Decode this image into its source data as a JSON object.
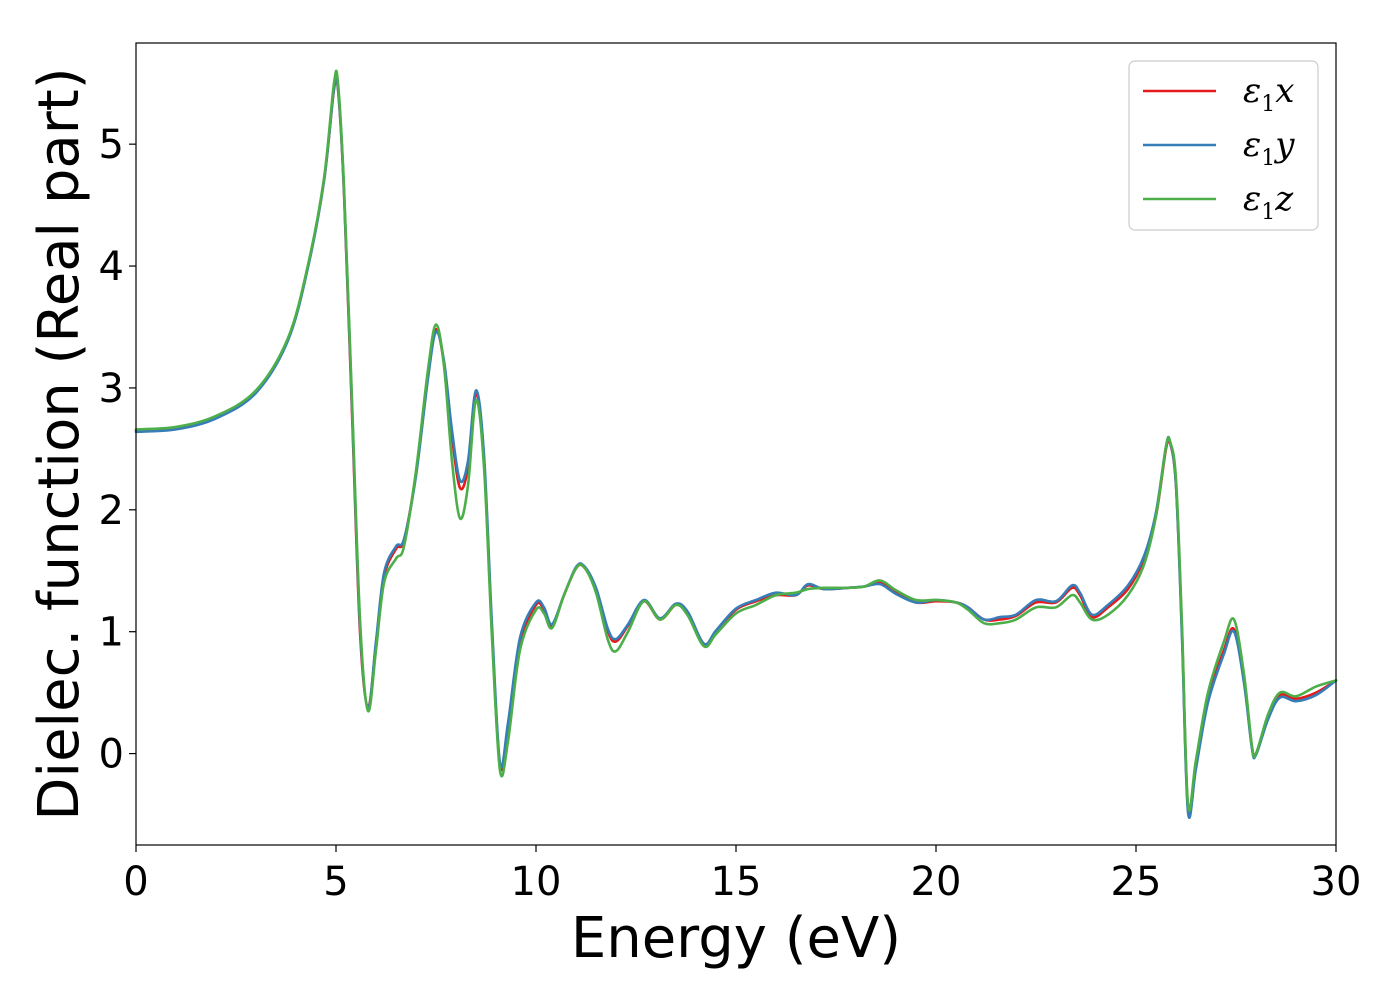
{
  "chart_data": {
    "type": "line",
    "xlabel": "Energy (eV)",
    "ylabel": "Dielec. function (Real part)",
    "xlim": [
      0,
      30
    ],
    "ylim": [
      -0.75,
      5.83
    ],
    "xticks": [
      0,
      5,
      10,
      15,
      20,
      25,
      30
    ],
    "yticks": [
      0,
      1,
      2,
      3,
      4,
      5
    ],
    "grid": false,
    "legend_position": "top-right",
    "series": [
      {
        "name": "ε1x",
        "legend": {
          "base": "ε",
          "sub": "1",
          "suffix": "x"
        },
        "color": "#e41a1c",
        "points": [
          [
            0,
            2.65
          ],
          [
            1,
            2.67
          ],
          [
            2,
            2.76
          ],
          [
            3,
            2.97
          ],
          [
            3.8,
            3.4
          ],
          [
            4.3,
            4.0
          ],
          [
            4.7,
            4.7
          ],
          [
            4.95,
            5.45
          ],
          [
            5.05,
            5.45
          ],
          [
            5.2,
            4.6
          ],
          [
            5.4,
            2.8
          ],
          [
            5.6,
            1.0
          ],
          [
            5.8,
            0.38
          ],
          [
            6.0,
            0.9
          ],
          [
            6.2,
            1.45
          ],
          [
            6.5,
            1.68
          ],
          [
            6.7,
            1.75
          ],
          [
            7.0,
            2.3
          ],
          [
            7.3,
            3.1
          ],
          [
            7.5,
            3.48
          ],
          [
            7.7,
            3.2
          ],
          [
            7.9,
            2.6
          ],
          [
            8.1,
            2.18
          ],
          [
            8.3,
            2.35
          ],
          [
            8.5,
            2.95
          ],
          [
            8.7,
            2.4
          ],
          [
            8.9,
            1.0
          ],
          [
            9.1,
            -0.1
          ],
          [
            9.3,
            0.2
          ],
          [
            9.6,
            0.9
          ],
          [
            10.0,
            1.22
          ],
          [
            10.2,
            1.18
          ],
          [
            10.4,
            1.05
          ],
          [
            10.7,
            1.3
          ],
          [
            11.0,
            1.52
          ],
          [
            11.2,
            1.53
          ],
          [
            11.5,
            1.35
          ],
          [
            11.8,
            1.0
          ],
          [
            12.0,
            0.92
          ],
          [
            12.3,
            1.05
          ],
          [
            12.7,
            1.25
          ],
          [
            13.1,
            1.1
          ],
          [
            13.5,
            1.22
          ],
          [
            13.8,
            1.15
          ],
          [
            14.2,
            0.9
          ],
          [
            14.5,
            1.0
          ],
          [
            15.0,
            1.18
          ],
          [
            15.5,
            1.25
          ],
          [
            16.0,
            1.3
          ],
          [
            16.5,
            1.3
          ],
          [
            16.8,
            1.38
          ],
          [
            17.2,
            1.35
          ],
          [
            17.8,
            1.36
          ],
          [
            18.2,
            1.37
          ],
          [
            18.6,
            1.4
          ],
          [
            19.0,
            1.32
          ],
          [
            19.5,
            1.24
          ],
          [
            20.0,
            1.25
          ],
          [
            20.5,
            1.24
          ],
          [
            20.8,
            1.2
          ],
          [
            21.2,
            1.1
          ],
          [
            21.6,
            1.1
          ],
          [
            22.0,
            1.13
          ],
          [
            22.5,
            1.24
          ],
          [
            23.0,
            1.24
          ],
          [
            23.4,
            1.36
          ],
          [
            23.6,
            1.3
          ],
          [
            23.9,
            1.12
          ],
          [
            24.3,
            1.2
          ],
          [
            24.8,
            1.35
          ],
          [
            25.2,
            1.6
          ],
          [
            25.5,
            1.95
          ],
          [
            25.75,
            2.5
          ],
          [
            25.85,
            2.55
          ],
          [
            26.0,
            2.2
          ],
          [
            26.15,
            1.0
          ],
          [
            26.3,
            -0.45
          ],
          [
            26.5,
            -0.1
          ],
          [
            26.8,
            0.45
          ],
          [
            27.2,
            0.85
          ],
          [
            27.45,
            1.02
          ],
          [
            27.7,
            0.6
          ],
          [
            27.9,
            0.05
          ],
          [
            28.0,
            0.0
          ],
          [
            28.3,
            0.3
          ],
          [
            28.6,
            0.48
          ],
          [
            29.0,
            0.45
          ],
          [
            29.5,
            0.5
          ],
          [
            30.0,
            0.6
          ]
        ]
      },
      {
        "name": "ε1y",
        "legend": {
          "base": "ε",
          "sub": "1",
          "suffix": "y"
        },
        "color": "#377eb8",
        "points": [
          [
            0,
            2.64
          ],
          [
            1,
            2.66
          ],
          [
            2,
            2.75
          ],
          [
            3,
            2.96
          ],
          [
            3.8,
            3.39
          ],
          [
            4.3,
            3.99
          ],
          [
            4.7,
            4.7
          ],
          [
            4.95,
            5.46
          ],
          [
            5.05,
            5.46
          ],
          [
            5.2,
            4.62
          ],
          [
            5.4,
            2.85
          ],
          [
            5.6,
            1.05
          ],
          [
            5.8,
            0.37
          ],
          [
            6.0,
            0.92
          ],
          [
            6.2,
            1.48
          ],
          [
            6.5,
            1.7
          ],
          [
            6.7,
            1.76
          ],
          [
            7.0,
            2.28
          ],
          [
            7.3,
            3.08
          ],
          [
            7.5,
            3.46
          ],
          [
            7.7,
            3.22
          ],
          [
            7.9,
            2.65
          ],
          [
            8.1,
            2.24
          ],
          [
            8.3,
            2.4
          ],
          [
            8.5,
            2.98
          ],
          [
            8.7,
            2.45
          ],
          [
            8.9,
            1.05
          ],
          [
            9.1,
            -0.08
          ],
          [
            9.3,
            0.25
          ],
          [
            9.6,
            0.95
          ],
          [
            10.0,
            1.24
          ],
          [
            10.2,
            1.2
          ],
          [
            10.4,
            1.06
          ],
          [
            10.7,
            1.3
          ],
          [
            11.0,
            1.53
          ],
          [
            11.2,
            1.54
          ],
          [
            11.5,
            1.36
          ],
          [
            11.8,
            1.02
          ],
          [
            12.0,
            0.94
          ],
          [
            12.3,
            1.06
          ],
          [
            12.7,
            1.26
          ],
          [
            13.1,
            1.11
          ],
          [
            13.5,
            1.23
          ],
          [
            13.8,
            1.16
          ],
          [
            14.2,
            0.9
          ],
          [
            14.5,
            1.01
          ],
          [
            15.0,
            1.19
          ],
          [
            15.5,
            1.26
          ],
          [
            16.0,
            1.32
          ],
          [
            16.5,
            1.3
          ],
          [
            16.8,
            1.39
          ],
          [
            17.2,
            1.35
          ],
          [
            17.8,
            1.36
          ],
          [
            18.2,
            1.37
          ],
          [
            18.6,
            1.39
          ],
          [
            19.0,
            1.31
          ],
          [
            19.5,
            1.24
          ],
          [
            20.0,
            1.26
          ],
          [
            20.5,
            1.24
          ],
          [
            20.8,
            1.2
          ],
          [
            21.2,
            1.1
          ],
          [
            21.6,
            1.12
          ],
          [
            22.0,
            1.14
          ],
          [
            22.5,
            1.26
          ],
          [
            23.0,
            1.25
          ],
          [
            23.4,
            1.38
          ],
          [
            23.6,
            1.32
          ],
          [
            23.9,
            1.14
          ],
          [
            24.3,
            1.22
          ],
          [
            24.8,
            1.38
          ],
          [
            25.2,
            1.62
          ],
          [
            25.5,
            1.98
          ],
          [
            25.75,
            2.52
          ],
          [
            25.85,
            2.56
          ],
          [
            26.0,
            2.2
          ],
          [
            26.15,
            0.95
          ],
          [
            26.3,
            -0.48
          ],
          [
            26.5,
            -0.12
          ],
          [
            26.8,
            0.42
          ],
          [
            27.2,
            0.82
          ],
          [
            27.45,
            1.0
          ],
          [
            27.7,
            0.58
          ],
          [
            27.9,
            0.04
          ],
          [
            28.0,
            -0.01
          ],
          [
            28.3,
            0.28
          ],
          [
            28.6,
            0.46
          ],
          [
            29.0,
            0.43
          ],
          [
            29.5,
            0.48
          ],
          [
            30.0,
            0.6
          ]
        ]
      },
      {
        "name": "ε1z",
        "legend": {
          "base": "ε",
          "sub": "1",
          "suffix": "z"
        },
        "color": "#4daf4a",
        "points": [
          [
            0,
            2.66
          ],
          [
            1,
            2.68
          ],
          [
            2,
            2.77
          ],
          [
            3,
            2.98
          ],
          [
            3.8,
            3.41
          ],
          [
            4.3,
            4.01
          ],
          [
            4.7,
            4.72
          ],
          [
            4.95,
            5.5
          ],
          [
            5.05,
            5.5
          ],
          [
            5.2,
            4.65
          ],
          [
            5.4,
            2.9
          ],
          [
            5.6,
            1.1
          ],
          [
            5.8,
            0.35
          ],
          [
            6.0,
            0.85
          ],
          [
            6.2,
            1.4
          ],
          [
            6.5,
            1.6
          ],
          [
            6.7,
            1.7
          ],
          [
            7.0,
            2.32
          ],
          [
            7.3,
            3.15
          ],
          [
            7.5,
            3.52
          ],
          [
            7.7,
            3.18
          ],
          [
            7.9,
            2.4
          ],
          [
            8.1,
            1.93
          ],
          [
            8.3,
            2.2
          ],
          [
            8.5,
            2.9
          ],
          [
            8.7,
            2.35
          ],
          [
            8.9,
            0.95
          ],
          [
            9.1,
            -0.14
          ],
          [
            9.3,
            0.1
          ],
          [
            9.6,
            0.85
          ],
          [
            10.0,
            1.18
          ],
          [
            10.2,
            1.15
          ],
          [
            10.4,
            1.03
          ],
          [
            10.7,
            1.3
          ],
          [
            11.0,
            1.52
          ],
          [
            11.2,
            1.53
          ],
          [
            11.5,
            1.32
          ],
          [
            11.8,
            0.93
          ],
          [
            12.0,
            0.84
          ],
          [
            12.3,
            1.0
          ],
          [
            12.7,
            1.25
          ],
          [
            13.1,
            1.1
          ],
          [
            13.5,
            1.22
          ],
          [
            13.8,
            1.13
          ],
          [
            14.2,
            0.88
          ],
          [
            14.5,
            0.98
          ],
          [
            15.0,
            1.15
          ],
          [
            15.5,
            1.22
          ],
          [
            16.0,
            1.3
          ],
          [
            16.5,
            1.32
          ],
          [
            16.8,
            1.35
          ],
          [
            17.2,
            1.36
          ],
          [
            17.8,
            1.36
          ],
          [
            18.2,
            1.37
          ],
          [
            18.6,
            1.42
          ],
          [
            19.0,
            1.34
          ],
          [
            19.5,
            1.26
          ],
          [
            20.0,
            1.26
          ],
          [
            20.5,
            1.24
          ],
          [
            20.8,
            1.18
          ],
          [
            21.2,
            1.07
          ],
          [
            21.6,
            1.07
          ],
          [
            22.0,
            1.1
          ],
          [
            22.5,
            1.2
          ],
          [
            23.0,
            1.2
          ],
          [
            23.4,
            1.3
          ],
          [
            23.6,
            1.24
          ],
          [
            23.9,
            1.1
          ],
          [
            24.3,
            1.14
          ],
          [
            24.8,
            1.3
          ],
          [
            25.2,
            1.55
          ],
          [
            25.5,
            1.95
          ],
          [
            25.75,
            2.52
          ],
          [
            25.85,
            2.56
          ],
          [
            26.0,
            2.25
          ],
          [
            26.15,
            1.05
          ],
          [
            26.3,
            -0.42
          ],
          [
            26.5,
            -0.05
          ],
          [
            26.8,
            0.5
          ],
          [
            27.2,
            0.92
          ],
          [
            27.45,
            1.1
          ],
          [
            27.7,
            0.65
          ],
          [
            27.9,
            0.06
          ],
          [
            28.0,
            0.0
          ],
          [
            28.3,
            0.32
          ],
          [
            28.6,
            0.5
          ],
          [
            29.0,
            0.47
          ],
          [
            29.5,
            0.55
          ],
          [
            30.0,
            0.6
          ]
        ]
      }
    ]
  }
}
